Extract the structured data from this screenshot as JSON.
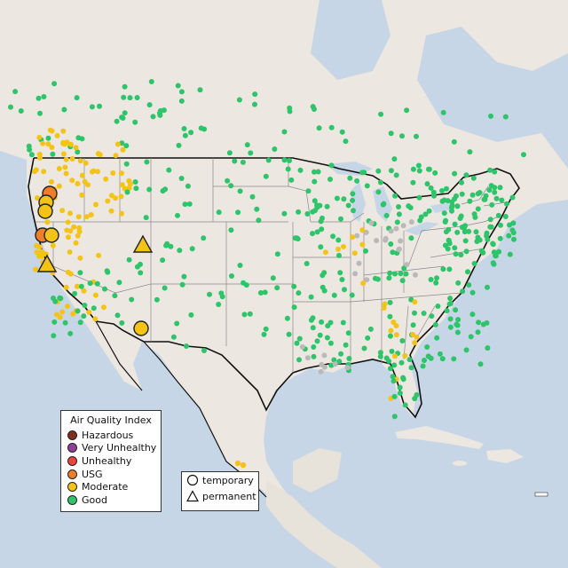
{
  "colors": {
    "ocean": "#c6d6e6",
    "land": "#ece7e1",
    "land_mexico": "#e7e2da",
    "state_line": "#8a8a8a",
    "country_line": "#111111",
    "hazardous": "#7e2d1e",
    "very_unhealthy": "#8f3f97",
    "unhealthy": "#e8453c",
    "usg": "#ef7e2a",
    "moderate": "#f3c416",
    "good": "#2ec46a",
    "no_data": "#b9b9b9"
  },
  "legend": {
    "title": "Air Quality Index",
    "items": [
      {
        "label": "Hazardous",
        "color": "#7e2d1e"
      },
      {
        "label": "Very Unhealthy",
        "color": "#8f3f97"
      },
      {
        "label": "Unhealthy",
        "color": "#e8453c"
      },
      {
        "label": "USG",
        "color": "#ef7e2a"
      },
      {
        "label": "Moderate",
        "color": "#f3c416"
      },
      {
        "label": "Good",
        "color": "#2ec46a"
      }
    ]
  },
  "monitor_types": {
    "temporary": "temporary",
    "permanent": "permanent"
  }
}
